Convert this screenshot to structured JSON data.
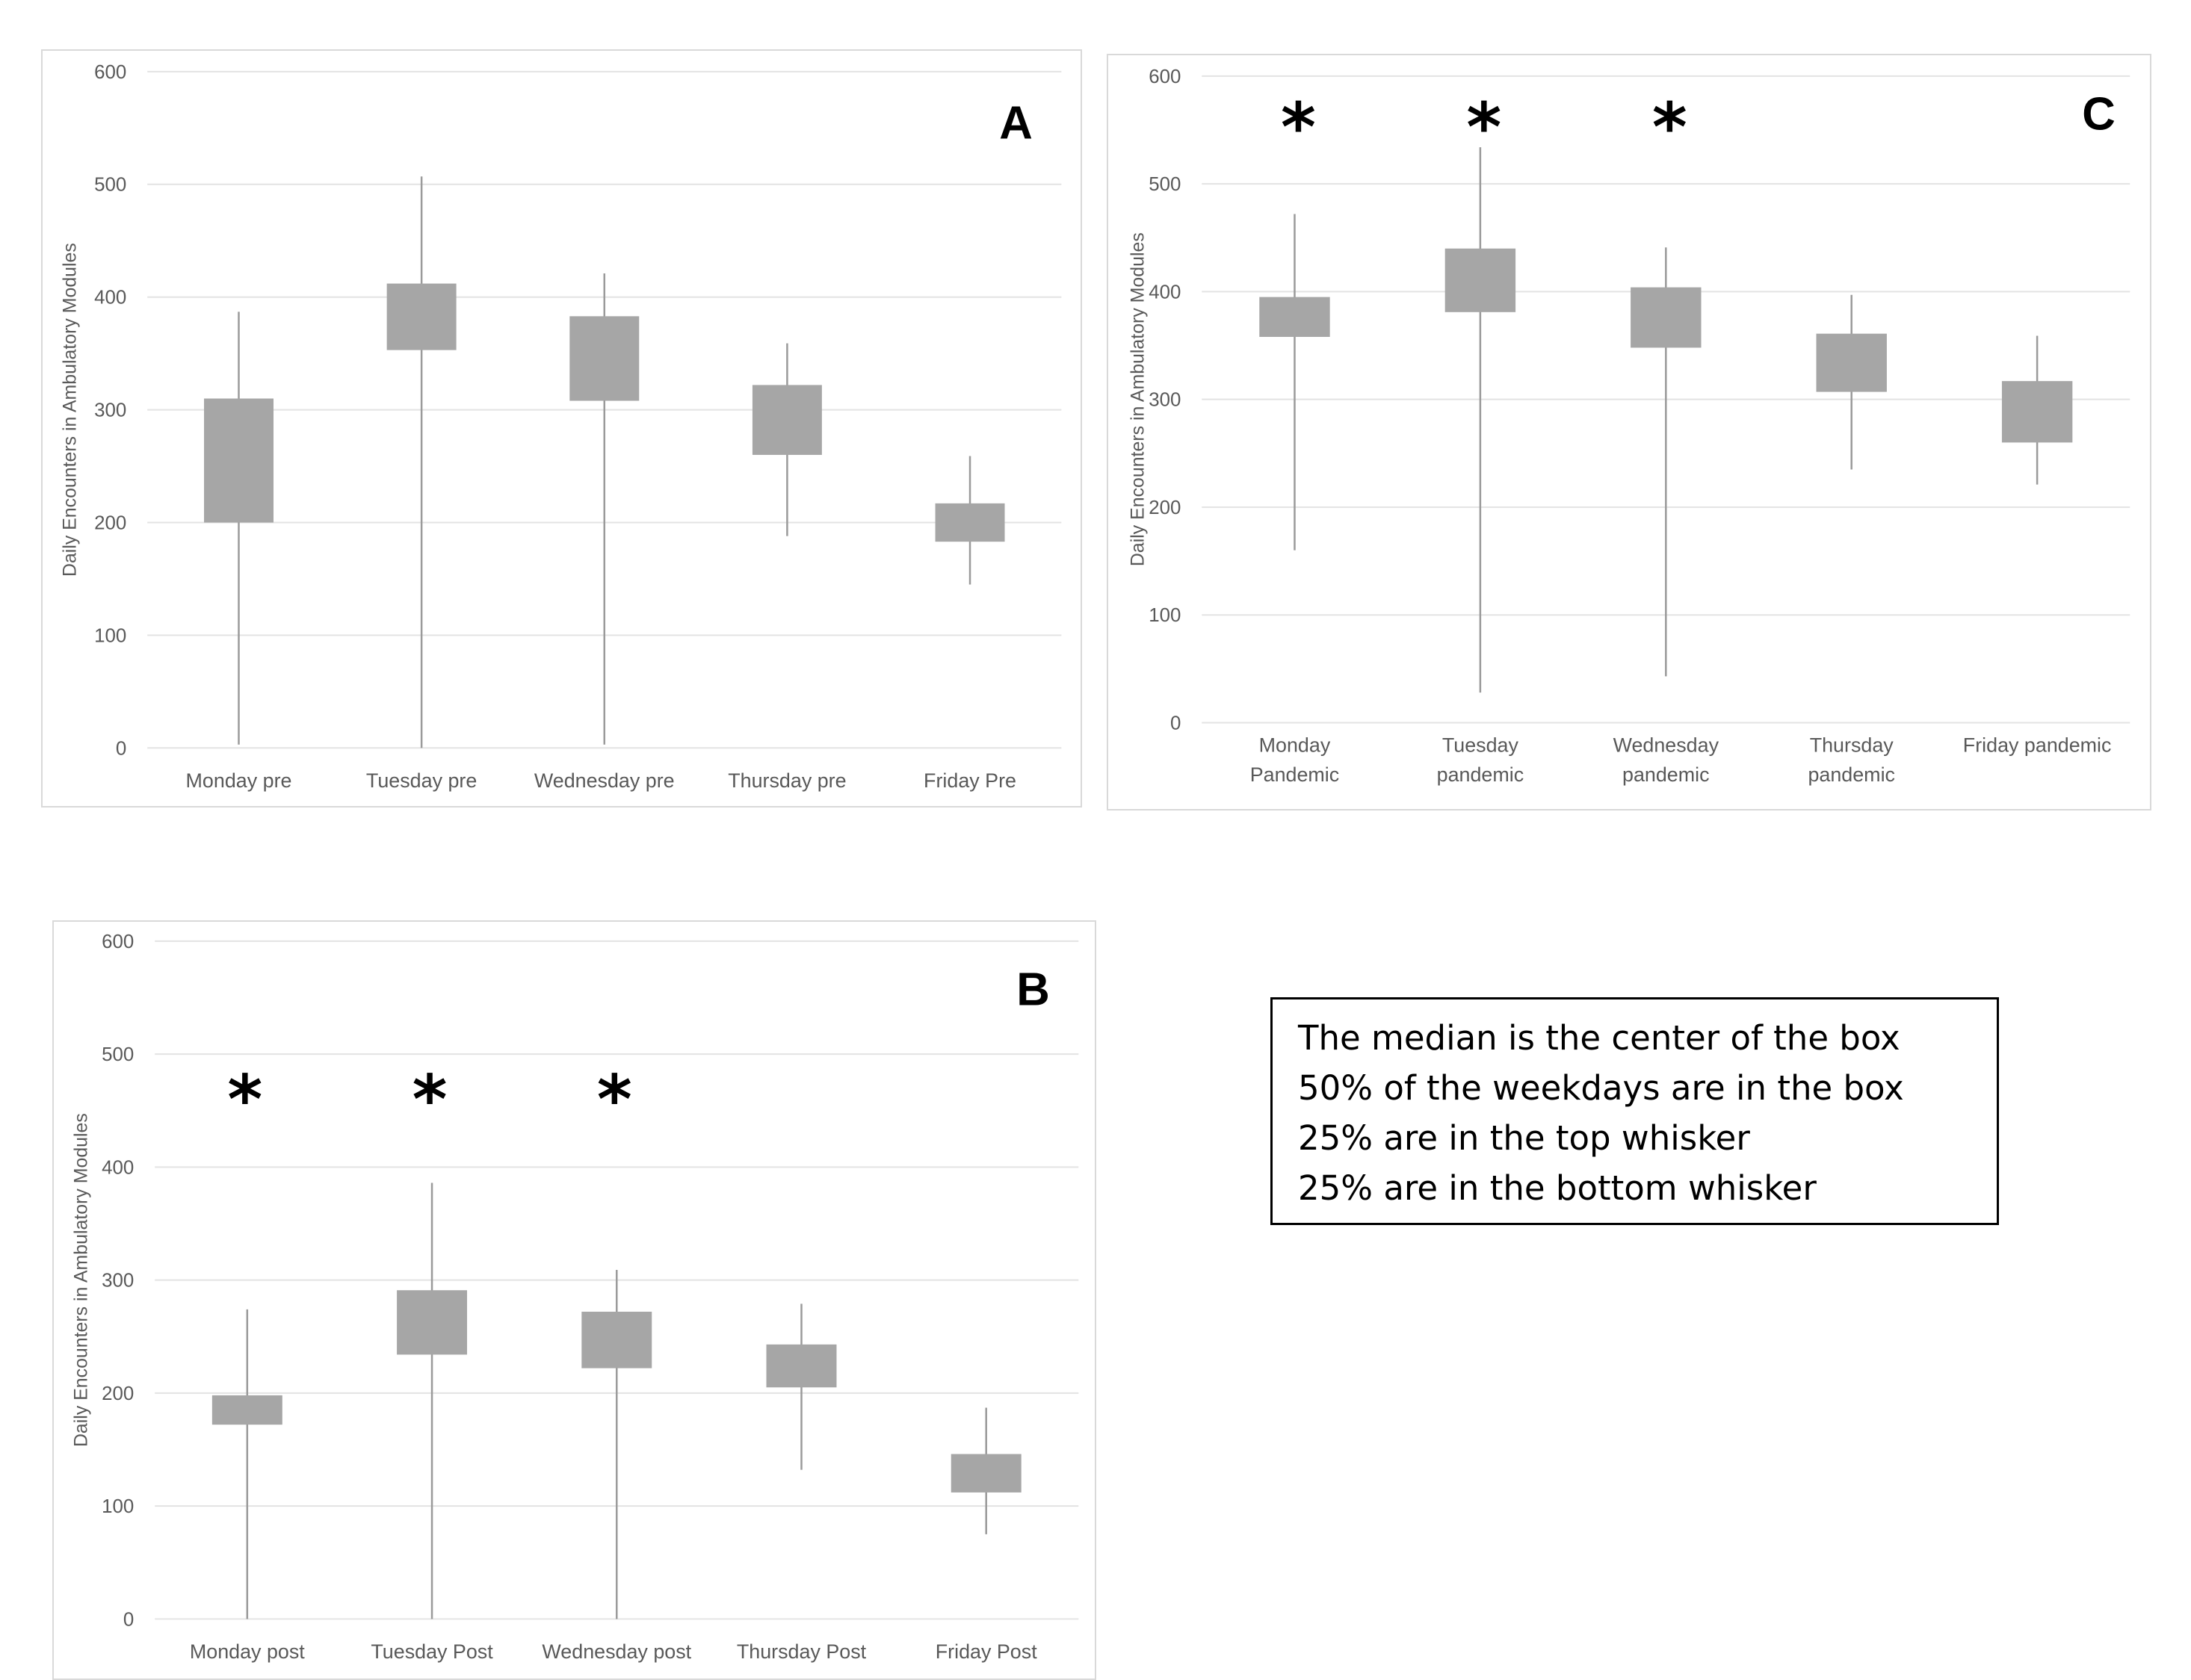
{
  "colors": {
    "box_fill": "#a6a6a6",
    "whisker": "#9a9a9a",
    "grid": "#e3e3e3",
    "tick_text": "#595959",
    "asterisk": "#000000"
  },
  "chart_data": [
    {
      "panel_letter": "A",
      "type": "boxplot",
      "ylabel": "Daily Encounters in Ambulatory Modules",
      "ylim": [
        0,
        600
      ],
      "yticks": [
        "0",
        "100",
        "200",
        "300",
        "400",
        "500",
        "600"
      ],
      "categories": [
        "Monday pre",
        "Tuesday pre",
        "Wednesday pre",
        "Thursday pre",
        "Friday Pre"
      ],
      "series": [
        {
          "name": "Monday pre",
          "min": 3,
          "q1": 200,
          "q3": 310,
          "max": 387,
          "significant": false
        },
        {
          "name": "Tuesday pre",
          "min": 0,
          "q1": 353,
          "q3": 412,
          "max": 507,
          "significant": false
        },
        {
          "name": "Wednesday pre",
          "min": 3,
          "q1": 308,
          "q3": 383,
          "max": 421,
          "significant": false
        },
        {
          "name": "Thursday pre",
          "min": 188,
          "q1": 260,
          "q3": 322,
          "max": 359,
          "significant": false
        },
        {
          "name": "Friday Pre",
          "min": 145,
          "q1": 183,
          "q3": 217,
          "max": 259,
          "significant": false
        }
      ]
    },
    {
      "panel_letter": "C",
      "type": "boxplot",
      "ylabel": "Daily Encounters in Ambulatory Modules",
      "ylim": [
        0,
        600
      ],
      "yticks": [
        "0",
        "100",
        "200",
        "300",
        "400",
        "500",
        "600"
      ],
      "categories": [
        [
          "Monday",
          "Pandemic"
        ],
        [
          "Tuesday",
          "pandemic"
        ],
        [
          "Wednesday",
          "pandemic"
        ],
        [
          "Thursday",
          "pandemic"
        ],
        [
          "Friday pandemic"
        ]
      ],
      "series": [
        {
          "name": "Monday Pandemic",
          "min": 160,
          "q1": 358,
          "q3": 395,
          "max": 472,
          "significant": true
        },
        {
          "name": "Tuesday pandemic",
          "min": 28,
          "q1": 381,
          "q3": 440,
          "max": 534,
          "significant": true
        },
        {
          "name": "Wednesday pandemic",
          "min": 43,
          "q1": 348,
          "q3": 404,
          "max": 441,
          "significant": true
        },
        {
          "name": "Thursday pandemic",
          "min": 235,
          "q1": 307,
          "q3": 361,
          "max": 397,
          "significant": false
        },
        {
          "name": "Friday pandemic",
          "min": 221,
          "q1": 260,
          "q3": 317,
          "max": 359,
          "significant": false
        }
      ],
      "significance_marker": "*"
    },
    {
      "panel_letter": "B",
      "type": "boxplot",
      "ylabel": "Daily Encounters in Ambulatory Modules",
      "ylim": [
        0,
        600
      ],
      "yticks": [
        "0",
        "100",
        "200",
        "300",
        "400",
        "500",
        "600"
      ],
      "categories": [
        "Monday post",
        "Tuesday Post",
        "Wednesday post",
        "Thursday Post",
        "Friday Post"
      ],
      "series": [
        {
          "name": "Monday post",
          "min": 0,
          "q1": 172,
          "q3": 198,
          "max": 274,
          "significant": true
        },
        {
          "name": "Tuesday Post",
          "min": 0,
          "q1": 234,
          "q3": 291,
          "max": 386,
          "significant": true
        },
        {
          "name": "Wednesday post",
          "min": 0,
          "q1": 222,
          "q3": 272,
          "max": 309,
          "significant": true
        },
        {
          "name": "Thursday Post",
          "min": 132,
          "q1": 205,
          "q3": 243,
          "max": 279,
          "significant": false
        },
        {
          "name": "Friday Post",
          "min": 75,
          "q1": 112,
          "q3": 146,
          "max": 187,
          "significant": false
        }
      ],
      "significance_marker": "*"
    }
  ],
  "legend_note": {
    "lines": [
      "The median is the center of the box",
      "50% of the weekdays are in the box",
      "25% are in the top whisker",
      "25% are in the bottom whisker"
    ]
  }
}
